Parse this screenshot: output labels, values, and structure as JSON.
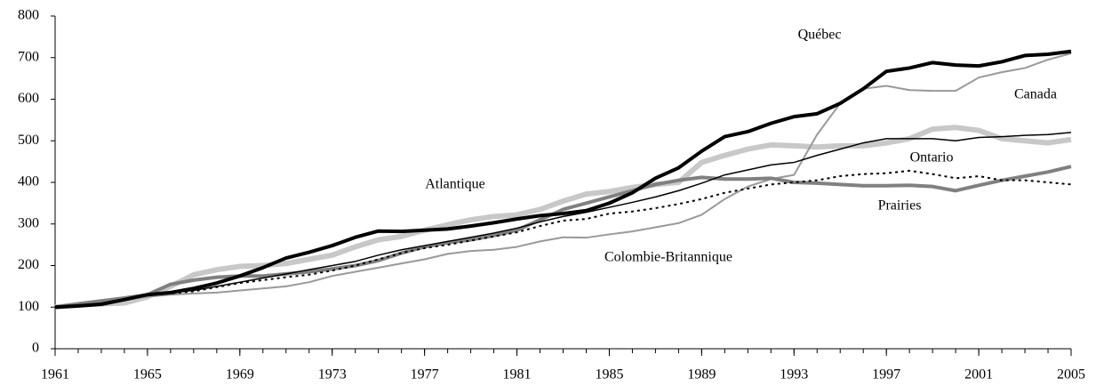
{
  "chart_data": {
    "type": "line",
    "x": [
      1961,
      1962,
      1963,
      1964,
      1965,
      1966,
      1967,
      1968,
      1969,
      1970,
      1971,
      1972,
      1973,
      1974,
      1975,
      1976,
      1977,
      1978,
      1979,
      1980,
      1981,
      1982,
      1983,
      1984,
      1985,
      1986,
      1987,
      1988,
      1989,
      1990,
      1991,
      1992,
      1993,
      1994,
      1995,
      1996,
      1997,
      1998,
      1999,
      2000,
      2001,
      2002,
      2003,
      2004,
      2005
    ],
    "xlim": [
      1961,
      2005
    ],
    "xticks": [
      1961,
      1965,
      1969,
      1973,
      1977,
      1981,
      1985,
      1989,
      1993,
      1997,
      2001,
      2005
    ],
    "ylim": [
      0,
      800
    ],
    "yticks": [
      0,
      100,
      200,
      300,
      400,
      500,
      600,
      700,
      800
    ],
    "grid": false,
    "series": [
      {
        "name": "Québec",
        "color": "#000000",
        "width": 4,
        "values": [
          100,
          103,
          107,
          118,
          130,
          135,
          145,
          158,
          175,
          195,
          218,
          232,
          248,
          268,
          283,
          282,
          285,
          288,
          295,
          303,
          312,
          320,
          325,
          332,
          350,
          375,
          410,
          435,
          475,
          510,
          522,
          542,
          558,
          565,
          590,
          625,
          667,
          675,
          688,
          682,
          680,
          690,
          705,
          708,
          715
        ]
      },
      {
        "name": "Canada",
        "color": "#000000",
        "width": 1.5,
        "values": [
          100,
          102,
          108,
          118,
          128,
          135,
          140,
          150,
          160,
          170,
          180,
          190,
          200,
          210,
          225,
          238,
          248,
          258,
          268,
          278,
          290,
          305,
          318,
          328,
          340,
          352,
          365,
          380,
          398,
          418,
          430,
          442,
          448,
          465,
          480,
          495,
          505,
          505,
          505,
          500,
          508,
          510,
          513,
          515,
          520
        ]
      },
      {
        "name": "Ontario",
        "color": "#000000",
        "width": 2,
        "dash": "3 4",
        "values": [
          100,
          102,
          108,
          118,
          128,
          133,
          138,
          148,
          158,
          165,
          172,
          178,
          188,
          200,
          215,
          230,
          242,
          250,
          260,
          270,
          280,
          295,
          308,
          312,
          325,
          330,
          338,
          348,
          360,
          375,
          385,
          395,
          400,
          405,
          415,
          420,
          422,
          428,
          420,
          410,
          415,
          405,
          405,
          400,
          395
        ]
      },
      {
        "name": "Prairies",
        "color": "#808080",
        "width": 4,
        "values": [
          100,
          108,
          115,
          122,
          130,
          155,
          165,
          172,
          175,
          175,
          180,
          185,
          192,
          200,
          212,
          230,
          245,
          255,
          262,
          272,
          285,
          310,
          335,
          350,
          365,
          380,
          395,
          405,
          412,
          408,
          408,
          410,
          400,
          398,
          395,
          392,
          392,
          393,
          390,
          380,
          393,
          405,
          415,
          425,
          438
        ]
      },
      {
        "name": "Colombie-Britannique",
        "color": "#999999",
        "width": 2,
        "values": [
          100,
          104,
          110,
          118,
          125,
          130,
          133,
          135,
          140,
          145,
          150,
          160,
          175,
          185,
          195,
          205,
          215,
          228,
          235,
          238,
          245,
          258,
          268,
          267,
          275,
          282,
          292,
          302,
          322,
          360,
          390,
          408,
          418,
          515,
          590,
          625,
          632,
          622,
          620,
          620,
          652,
          665,
          675,
          695,
          710
        ]
      },
      {
        "name": "Atlantique",
        "color": "#c8c8c8",
        "width": 6,
        "values": [
          100,
          105,
          108,
          110,
          125,
          150,
          178,
          190,
          198,
          200,
          205,
          215,
          225,
          245,
          262,
          270,
          285,
          298,
          310,
          318,
          322,
          335,
          355,
          372,
          378,
          388,
          395,
          400,
          448,
          465,
          480,
          490,
          488,
          485,
          488,
          488,
          495,
          505,
          528,
          532,
          525,
          505,
          500,
          495,
          503
        ]
      }
    ]
  }
}
